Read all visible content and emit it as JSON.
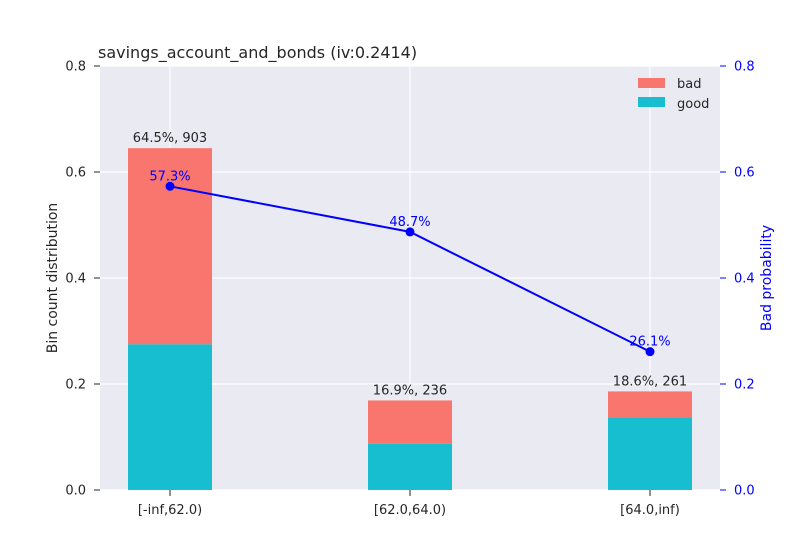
{
  "chart_data": {
    "type": "bar",
    "title": "savings_account_and_bonds  (iv:0.2414)",
    "categories": [
      "[-inf,62.0)",
      "[62.0,64.0)",
      "[64.0,inf)"
    ],
    "series": [
      {
        "name": "good",
        "values": [
          0.275,
          0.087,
          0.137
        ],
        "color": "#17becf"
      },
      {
        "name": "bad",
        "values": [
          0.37,
          0.082,
          0.049
        ],
        "color": "#f8766d"
      }
    ],
    "bar_labels": [
      "64.5%, 903",
      "16.9%, 236",
      "18.6%, 261"
    ],
    "line": {
      "name": "Bad probability",
      "values": [
        0.573,
        0.487,
        0.261
      ],
      "labels": [
        "57.3%",
        "48.7%",
        "26.1%"
      ],
      "color": "#0000ff"
    },
    "ylabel": "Bin count distribution",
    "y2label": "Bad probability",
    "ylim": [
      0,
      0.8
    ],
    "y2lim": [
      0,
      0.8
    ],
    "yticks": [
      "0.0",
      "0.2",
      "0.4",
      "0.6",
      "0.8"
    ],
    "y2ticks": [
      "0.0",
      "0.2",
      "0.4",
      "0.6",
      "0.8"
    ],
    "legend": {
      "position": "top-right",
      "entries": [
        "bad",
        "good"
      ]
    },
    "grid": true,
    "background": "#eaeaf2"
  }
}
